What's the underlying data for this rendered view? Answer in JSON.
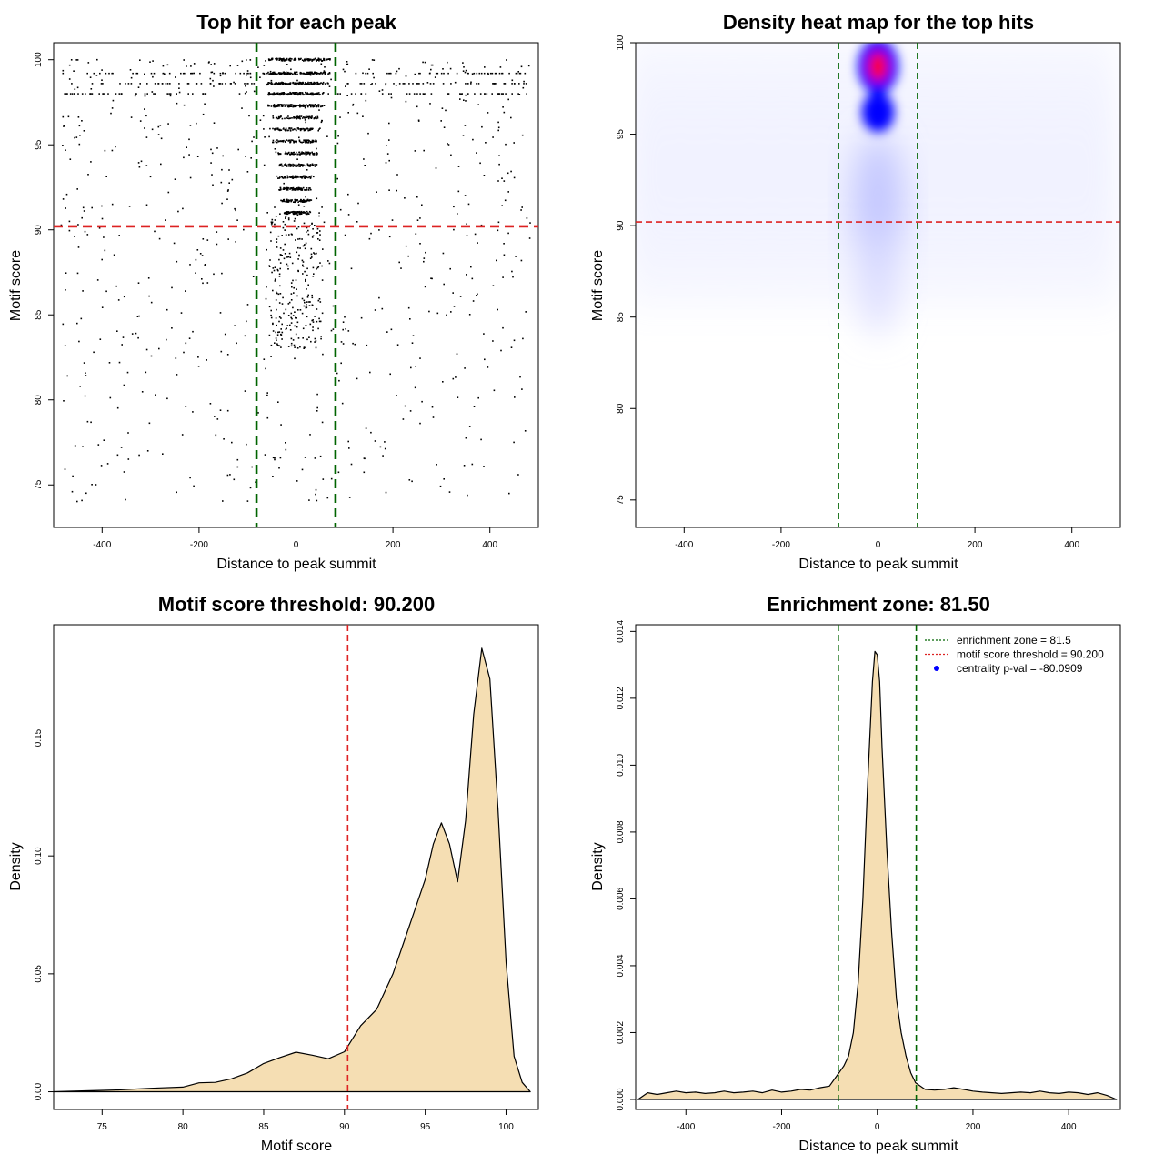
{
  "chart_data": [
    {
      "id": "scatter",
      "type": "scatter",
      "title": "Top hit for each peak",
      "xlabel": "Distance to peak summit",
      "ylabel": "Motif score",
      "xlim": [
        -500,
        500
      ],
      "ylim": [
        72.5,
        101
      ],
      "xticks": [
        -400,
        -200,
        0,
        200,
        400
      ],
      "yticks": [
        75,
        80,
        85,
        90,
        95,
        100
      ],
      "hline": 90.2,
      "vlines": [
        -81.5,
        81.5
      ],
      "hline_color": "#dd2222",
      "vline_color": "#006400",
      "point_color": "#000000",
      "points_summary": {
        "core_band_x": [
          -78,
          78
        ],
        "core_band_y": [
          88,
          100
        ],
        "score_levels": [
          100,
          99.2,
          98.6,
          98,
          97.3,
          96.6,
          95.9,
          95.2,
          94.5,
          93.8,
          93.1,
          92.4,
          91.7,
          91
        ],
        "background_y": [
          73.5,
          100
        ],
        "n_points_approx": 4200
      }
    },
    {
      "id": "heatmap",
      "type": "heatmap",
      "title": "Density heat map for the top hits",
      "xlabel": "Distance to peak summit",
      "ylabel": "Motif score",
      "xlim": [
        -500,
        500
      ],
      "ylim": [
        73.5,
        100
      ],
      "xticks": [
        -400,
        -200,
        0,
        200,
        400
      ],
      "yticks": [
        75,
        80,
        85,
        90,
        95,
        100
      ],
      "hline": 90.2,
      "vlines": [
        -81.5,
        81.5
      ],
      "hline_color": "#dd2222",
      "vline_color": "#006400",
      "peak_center": {
        "x": 0,
        "y": 98.7
      },
      "secondary_center": {
        "x": 0,
        "y": 96.2
      },
      "colors": [
        "#ffffff",
        "#0000ff",
        "#ff0000"
      ]
    },
    {
      "id": "density-score",
      "type": "area",
      "title": "Motif score threshold: 90.200",
      "xlabel": "Motif score",
      "ylabel": "Density",
      "xlim": [
        72,
        102
      ],
      "ylim": [
        -0.0075,
        0.198
      ],
      "xticks": [
        75,
        80,
        85,
        90,
        95,
        100
      ],
      "yticks": [
        0.0,
        0.05,
        0.1,
        0.15
      ],
      "ytick_labels": [
        "0.00",
        "0.05",
        "0.10",
        "0.15"
      ],
      "vline": 90.2,
      "vline_color": "#dd2222",
      "fill_color": "#f5deb3",
      "x": [
        72,
        74,
        76,
        78,
        80,
        81,
        82,
        83,
        84,
        85,
        86,
        87,
        88,
        89,
        90,
        91,
        92,
        93,
        94,
        95,
        95.5,
        96,
        96.5,
        97,
        97.5,
        98,
        98.5,
        99,
        99.5,
        100,
        100.5,
        101,
        101.5
      ],
      "y": [
        0.0,
        0.0004,
        0.0008,
        0.0015,
        0.002,
        0.0038,
        0.004,
        0.0055,
        0.008,
        0.012,
        0.0145,
        0.0168,
        0.0155,
        0.014,
        0.017,
        0.028,
        0.035,
        0.05,
        0.07,
        0.09,
        0.105,
        0.114,
        0.105,
        0.089,
        0.115,
        0.16,
        0.188,
        0.175,
        0.12,
        0.055,
        0.015,
        0.004,
        0.0
      ]
    },
    {
      "id": "density-dist",
      "type": "area",
      "title": "Enrichment zone: 81.50",
      "xlabel": "Distance to peak summit",
      "ylabel": "Density",
      "xlim": [
        -505,
        508
      ],
      "ylim": [
        -0.0003,
        0.0142
      ],
      "xticks": [
        -400,
        -200,
        0,
        200,
        400
      ],
      "yticks": [
        0.0,
        0.002,
        0.004,
        0.006,
        0.008,
        0.01,
        0.012,
        0.014
      ],
      "ytick_labels": [
        "0.000",
        "0.002",
        "0.004",
        "0.006",
        "0.008",
        "0.010",
        "0.012",
        "0.014"
      ],
      "vlines": [
        -81.5,
        81.5
      ],
      "vline_color": "#006400",
      "fill_color": "#f5deb3",
      "x": [
        -500,
        -480,
        -460,
        -440,
        -420,
        -400,
        -380,
        -360,
        -340,
        -320,
        -300,
        -280,
        -260,
        -240,
        -220,
        -200,
        -180,
        -160,
        -140,
        -120,
        -100,
        -90,
        -80,
        -70,
        -60,
        -50,
        -40,
        -30,
        -20,
        -10,
        -5,
        0,
        5,
        10,
        20,
        30,
        40,
        50,
        60,
        70,
        80,
        100,
        120,
        140,
        160,
        180,
        200,
        220,
        240,
        260,
        280,
        300,
        320,
        340,
        360,
        380,
        400,
        420,
        440,
        460,
        480,
        500
      ],
      "y": [
        0.0,
        0.0002,
        0.00015,
        0.0002,
        0.00025,
        0.0002,
        0.00022,
        0.00018,
        0.0002,
        0.00025,
        0.0002,
        0.00022,
        0.00025,
        0.0002,
        0.00028,
        0.00022,
        0.00025,
        0.0003,
        0.00028,
        0.00035,
        0.0004,
        0.0006,
        0.0008,
        0.001,
        0.0013,
        0.002,
        0.0035,
        0.006,
        0.0095,
        0.0125,
        0.0134,
        0.0133,
        0.0125,
        0.0105,
        0.0075,
        0.005,
        0.003,
        0.002,
        0.0013,
        0.0008,
        0.0005,
        0.0003,
        0.00028,
        0.0003,
        0.00035,
        0.0003,
        0.00025,
        0.00022,
        0.0002,
        0.00018,
        0.0002,
        0.00022,
        0.0002,
        0.00025,
        0.0002,
        0.00018,
        0.00022,
        0.0002,
        0.00015,
        0.0002,
        0.00012,
        0.0
      ],
      "legend": [
        {
          "label": "enrichment zone = 81.5",
          "kind": "line",
          "color": "#006400"
        },
        {
          "label": "motif score threshold = 90.200",
          "kind": "line",
          "color": "#dd2222"
        },
        {
          "label": "centrality p-val = -80.0909",
          "kind": "point",
          "color": "#0000ff"
        }
      ]
    }
  ]
}
